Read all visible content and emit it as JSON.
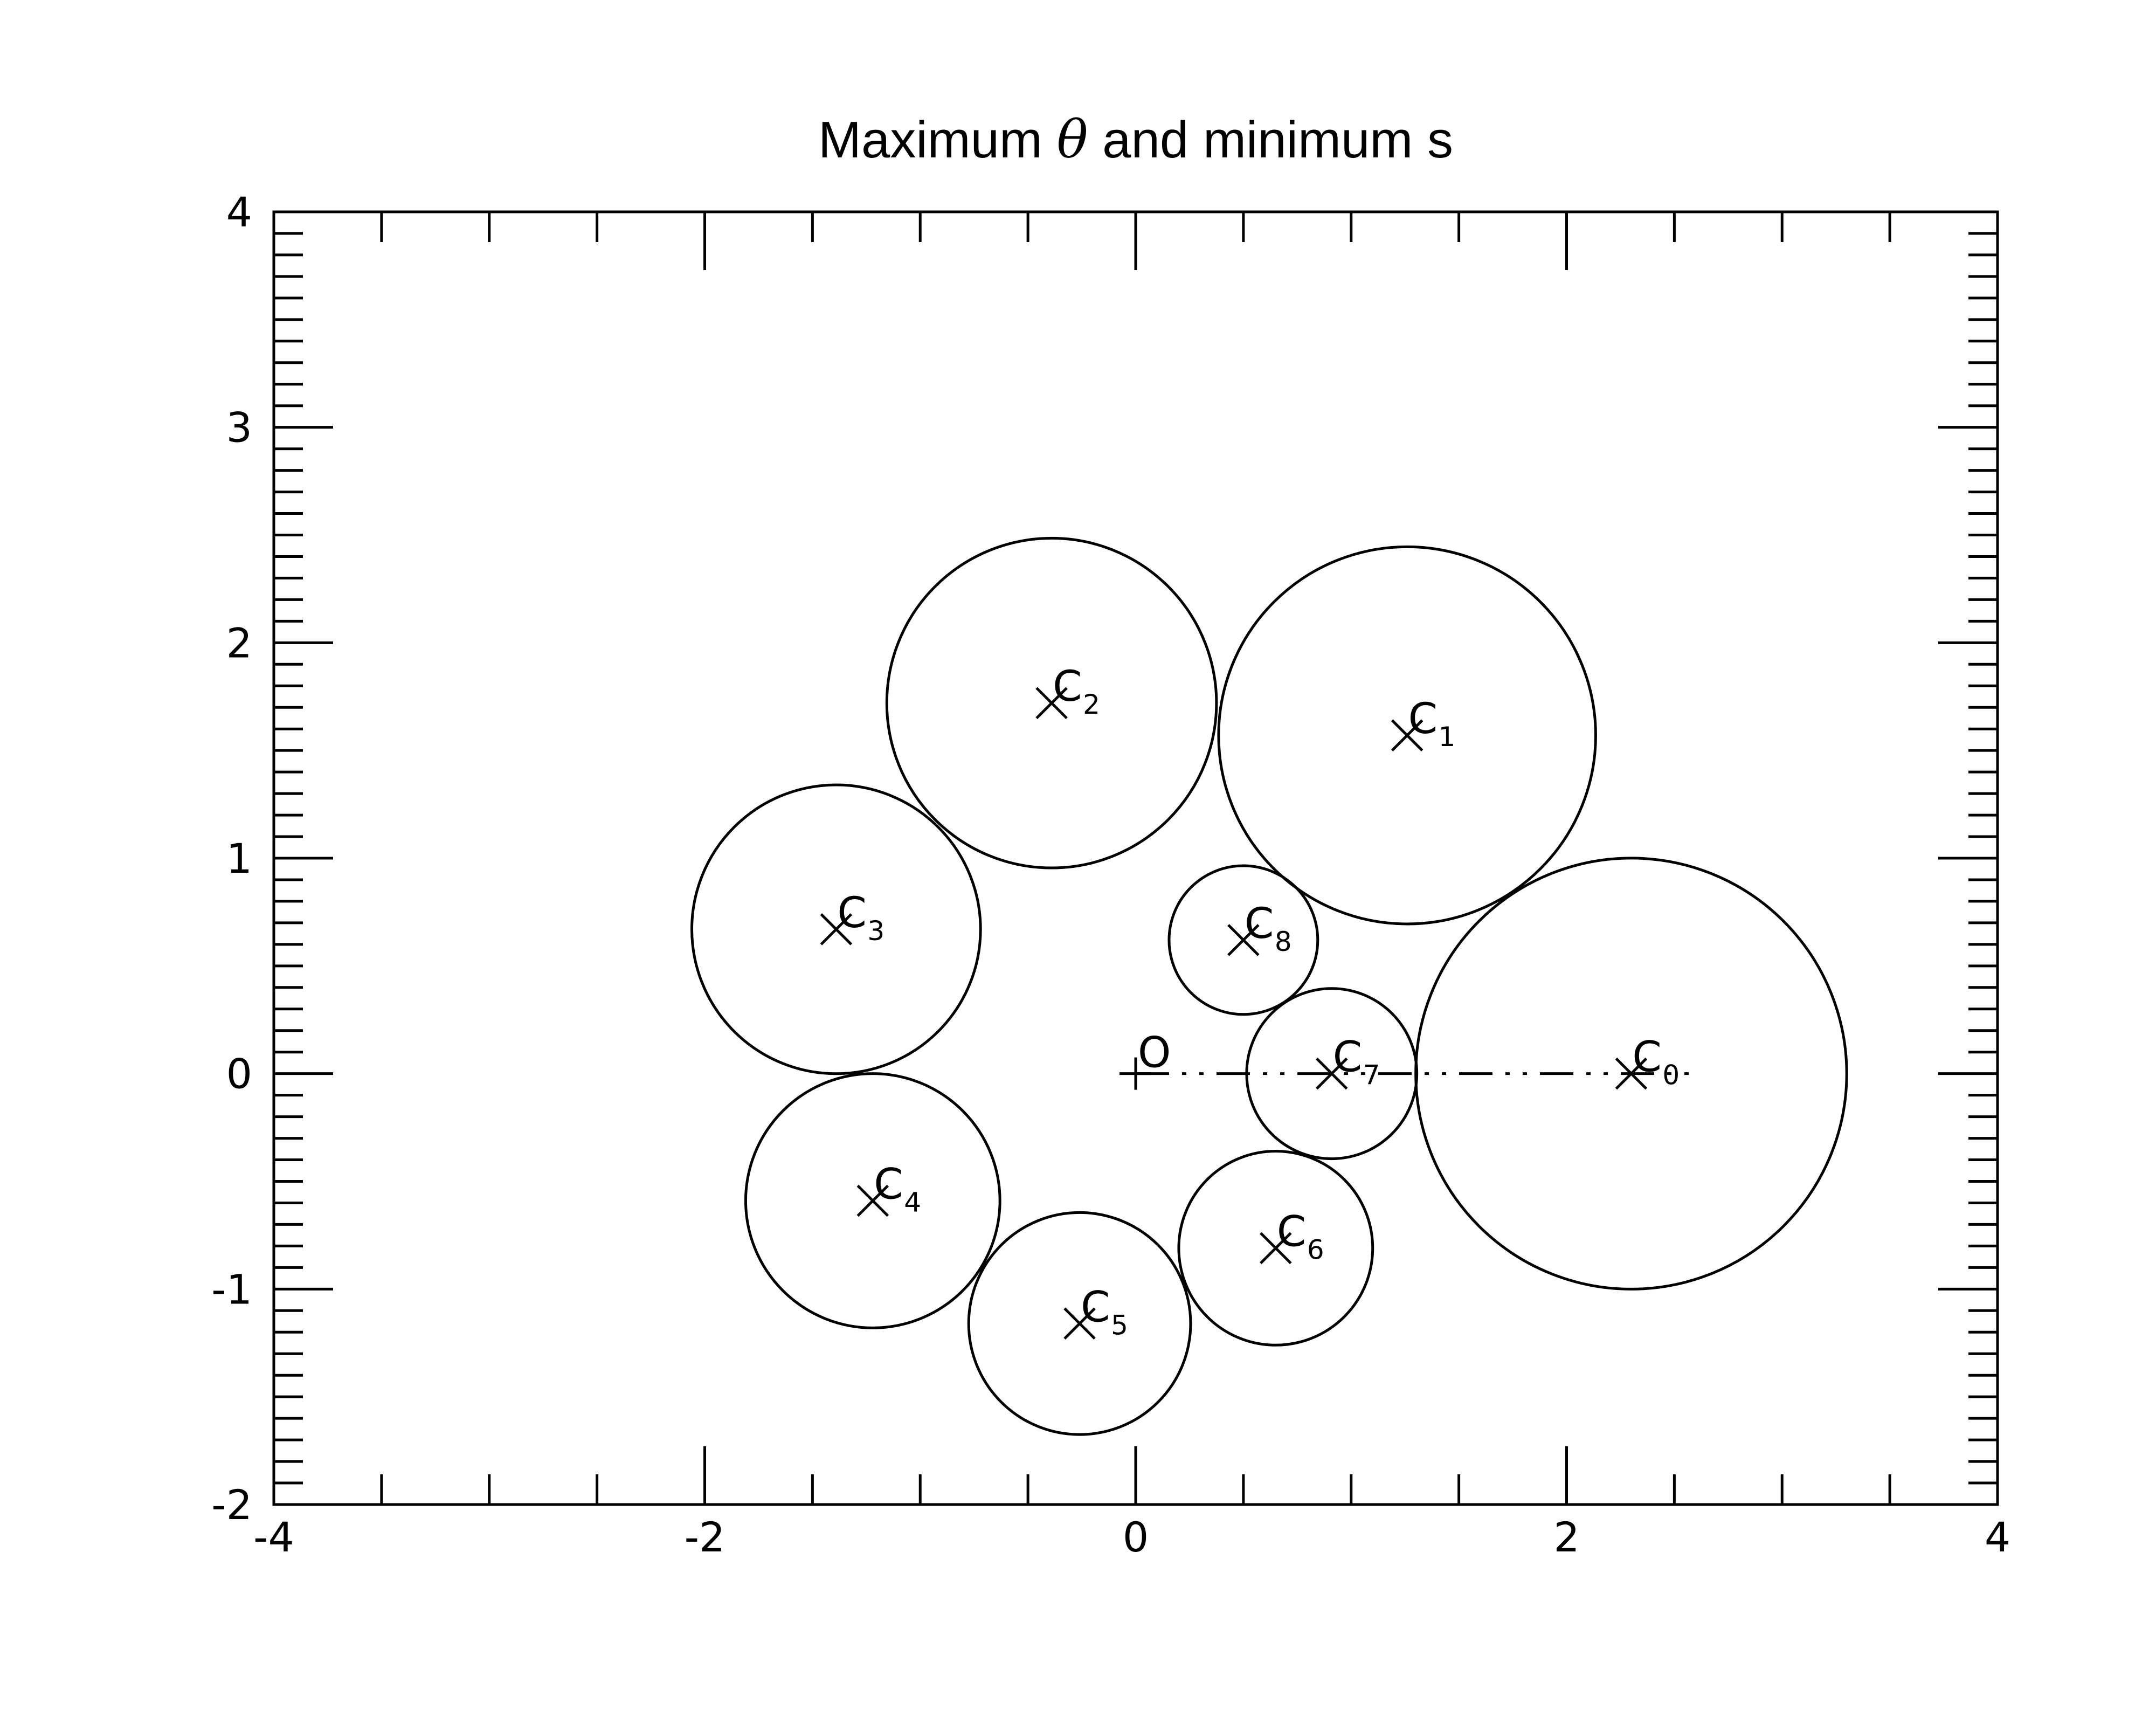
{
  "chart_data": {
    "type": "scatter",
    "title": {
      "prefix": "Maximum ",
      "symbol": "θ",
      "suffix": " and minimum s"
    },
    "xlabel": "",
    "ylabel": "",
    "xlim": [
      -4,
      4
    ],
    "ylim": [
      -2,
      4
    ],
    "x_ticks": [
      -4,
      -2,
      0,
      2,
      4
    ],
    "y_ticks": [
      -2,
      -1,
      0,
      1,
      2,
      3,
      4
    ],
    "x_tick_labels": [
      "-4",
      "-2",
      "0",
      "2",
      "4"
    ],
    "y_tick_labels": [
      "-2",
      "-1",
      "0",
      "1",
      "2",
      "3",
      "4"
    ],
    "x_minor_step": 0.5,
    "y_minor_step": 0.1,
    "grid": false,
    "origin": {
      "label": "O",
      "x": 0,
      "y": 0
    },
    "circles": [
      {
        "label": "C",
        "sub": "0",
        "x": 2.3,
        "y": 0.0,
        "r": 1.0
      },
      {
        "label": "C",
        "sub": "1",
        "x": 1.26,
        "y": 1.57,
        "r": 0.875
      },
      {
        "label": "C",
        "sub": "2",
        "x": -0.39,
        "y": 1.72,
        "r": 0.765
      },
      {
        "label": "C",
        "sub": "3",
        "x": -1.39,
        "y": 0.67,
        "r": 0.67
      },
      {
        "label": "C",
        "sub": "4",
        "x": -1.22,
        "y": -0.59,
        "r": 0.59
      },
      {
        "label": "C",
        "sub": "5",
        "x": -0.26,
        "y": -1.16,
        "r": 0.515
      },
      {
        "label": "C",
        "sub": "6",
        "x": 0.65,
        "y": -0.81,
        "r": 0.45
      },
      {
        "label": "C",
        "sub": "7",
        "x": 0.91,
        "y": 0.0,
        "r": 0.395
      },
      {
        "label": "C",
        "sub": "8",
        "x": 0.5,
        "y": 0.62,
        "r": 0.345
      }
    ],
    "reference_line": {
      "style": "dash-dot-dot",
      "x_start": 0,
      "x_end": 2.62,
      "y": 0
    }
  }
}
